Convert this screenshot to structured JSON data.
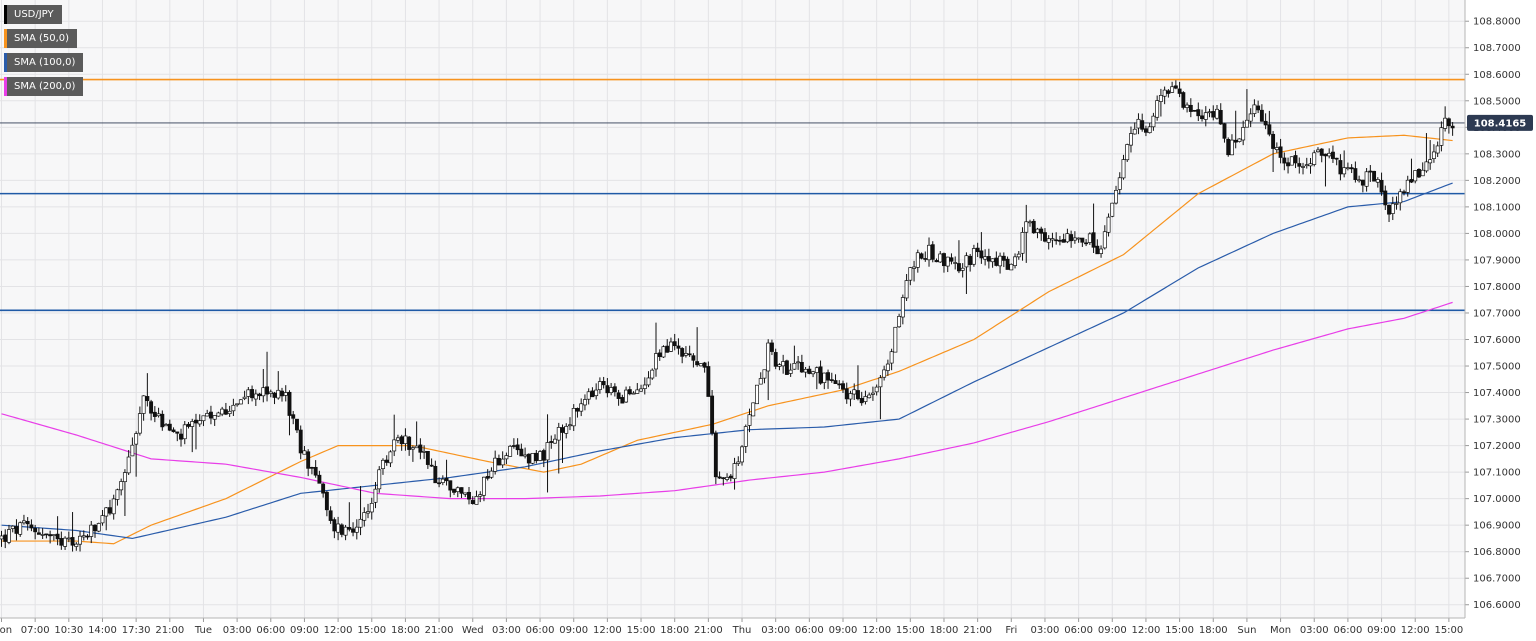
{
  "chart_data": {
    "type": "candlestick",
    "title": "",
    "ylabel": "",
    "xlabel": "",
    "ylim": [
      106.55,
      108.88
    ],
    "grid": true,
    "legend_position": "top-left",
    "legend": [
      {
        "label": "USD/JPY",
        "color": "#000000"
      },
      {
        "label": "SMA (50,0)",
        "color": "#f7931e"
      },
      {
        "label": "SMA (100,0)",
        "color": "#2a5caa"
      },
      {
        "label": "SMA (200,0)",
        "color": "#e83ee8"
      }
    ],
    "y_ticks": [
      "108.8000",
      "108.7000",
      "108.6000",
      "108.5000",
      "108.4000",
      "108.3000",
      "108.2000",
      "108.1000",
      "108.0000",
      "107.9000",
      "107.8000",
      "107.7000",
      "107.6000",
      "107.5000",
      "107.4000",
      "107.3000",
      "107.2000",
      "107.1000",
      "107.0000",
      "106.9000",
      "106.8000",
      "106.7000",
      "106.6000"
    ],
    "x_ticks": [
      {
        "i": 0,
        "label": "Mon"
      },
      {
        "i": 9,
        "label": "07:00"
      },
      {
        "i": 18,
        "label": "10:30"
      },
      {
        "i": 27,
        "label": "14:00"
      },
      {
        "i": 36,
        "label": "17:30"
      },
      {
        "i": 45,
        "label": "21:00"
      },
      {
        "i": 54,
        "label": "Tue"
      },
      {
        "i": 63,
        "label": "03:00"
      },
      {
        "i": 72,
        "label": "06:00"
      },
      {
        "i": 81,
        "label": "09:00"
      },
      {
        "i": 90,
        "label": "12:00"
      },
      {
        "i": 99,
        "label": "15:00"
      },
      {
        "i": 108,
        "label": "18:00"
      },
      {
        "i": 117,
        "label": "21:00"
      },
      {
        "i": 126,
        "label": "Wed"
      },
      {
        "i": 135,
        "label": "03:00"
      },
      {
        "i": 144,
        "label": "06:00"
      },
      {
        "i": 153,
        "label": "09:00"
      },
      {
        "i": 162,
        "label": "12:00"
      },
      {
        "i": 171,
        "label": "15:00"
      },
      {
        "i": 180,
        "label": "18:00"
      },
      {
        "i": 189,
        "label": "21:00"
      },
      {
        "i": 198,
        "label": "Thu"
      },
      {
        "i": 207,
        "label": "03:00"
      },
      {
        "i": 216,
        "label": "06:00"
      },
      {
        "i": 225,
        "label": "09:00"
      },
      {
        "i": 234,
        "label": "12:00"
      },
      {
        "i": 243,
        "label": "15:00"
      },
      {
        "i": 252,
        "label": "18:00"
      },
      {
        "i": 261,
        "label": "21:00"
      },
      {
        "i": 270,
        "label": "Fri"
      },
      {
        "i": 279,
        "label": "03:00"
      },
      {
        "i": 288,
        "label": "06:00"
      },
      {
        "i": 297,
        "label": "09:00"
      },
      {
        "i": 306,
        "label": "12:00"
      },
      {
        "i": 315,
        "label": "15:00"
      },
      {
        "i": 324,
        "label": "18:00"
      },
      {
        "i": 333,
        "label": "Sun"
      },
      {
        "i": 342,
        "label": "Mon"
      },
      {
        "i": 351,
        "label": "03:00"
      },
      {
        "i": 360,
        "label": "06:00"
      },
      {
        "i": 369,
        "label": "09:00"
      },
      {
        "i": 378,
        "label": "12:00"
      },
      {
        "i": 387,
        "label": "15:00"
      }
    ],
    "x_count": 391,
    "price_path": [
      [
        0,
        106.85
      ],
      [
        5,
        106.89
      ],
      [
        10,
        106.88
      ],
      [
        16,
        106.82
      ],
      [
        20,
        106.84
      ],
      [
        25,
        106.88
      ],
      [
        30,
        106.98
      ],
      [
        34,
        107.15
      ],
      [
        38,
        107.38
      ],
      [
        42,
        107.3
      ],
      [
        47,
        107.23
      ],
      [
        52,
        107.28
      ],
      [
        57,
        107.3
      ],
      [
        62,
        107.37
      ],
      [
        70,
        107.4
      ],
      [
        76,
        107.39
      ],
      [
        80,
        107.18
      ],
      [
        84,
        107.1
      ],
      [
        88,
        106.9
      ],
      [
        92,
        106.88
      ],
      [
        97,
        106.92
      ],
      [
        102,
        107.12
      ],
      [
        106,
        107.24
      ],
      [
        112,
        107.18
      ],
      [
        116,
        107.08
      ],
      [
        121,
        107.05
      ],
      [
        126,
        106.98
      ],
      [
        130,
        107.1
      ],
      [
        135,
        107.18
      ],
      [
        140,
        107.16
      ],
      [
        145,
        107.17
      ],
      [
        150,
        107.26
      ],
      [
        155,
        107.35
      ],
      [
        160,
        107.42
      ],
      [
        165,
        107.39
      ],
      [
        170,
        107.39
      ],
      [
        175,
        107.54
      ],
      [
        180,
        107.58
      ],
      [
        185,
        107.52
      ],
      [
        188,
        107.5
      ],
      [
        191,
        107.08
      ],
      [
        195,
        107.07
      ],
      [
        198,
        107.18
      ],
      [
        201,
        107.38
      ],
      [
        205,
        107.56
      ],
      [
        210,
        107.48
      ],
      [
        215,
        107.49
      ],
      [
        220,
        107.45
      ],
      [
        225,
        107.4
      ],
      [
        230,
        107.39
      ],
      [
        234,
        107.42
      ],
      [
        237,
        107.5
      ],
      [
        240,
        107.7
      ],
      [
        243,
        107.88
      ],
      [
        248,
        107.93
      ],
      [
        252,
        107.9
      ],
      [
        256,
        107.88
      ],
      [
        262,
        107.93
      ],
      [
        266,
        107.9
      ],
      [
        270,
        107.87
      ],
      [
        274,
        108.03
      ],
      [
        279,
        107.96
      ],
      [
        285,
        108.0
      ],
      [
        290,
        107.99
      ],
      [
        294,
        107.92
      ],
      [
        297,
        108.1
      ],
      [
        300,
        108.28
      ],
      [
        304,
        108.43
      ],
      [
        307,
        108.4
      ],
      [
        310,
        108.53
      ],
      [
        314,
        108.55
      ],
      [
        318,
        108.45
      ],
      [
        321,
        108.43
      ],
      [
        325,
        108.48
      ],
      [
        328,
        108.32
      ],
      [
        332,
        108.38
      ],
      [
        336,
        108.48
      ],
      [
        340,
        108.35
      ],
      [
        343,
        108.25
      ],
      [
        347,
        108.27
      ],
      [
        351,
        108.3
      ],
      [
        356,
        108.27
      ],
      [
        360,
        108.22
      ],
      [
        364,
        108.21
      ],
      [
        368,
        108.22
      ],
      [
        370,
        108.08
      ],
      [
        374,
        108.13
      ],
      [
        378,
        108.22
      ],
      [
        382,
        108.3
      ],
      [
        386,
        108.41
      ],
      [
        388,
        108.42
      ]
    ],
    "series": [
      {
        "name": "SMA (50,0)",
        "color": "#f7931e",
        "points": [
          [
            0,
            106.84
          ],
          [
            20,
            106.84
          ],
          [
            30,
            106.83
          ],
          [
            40,
            106.9
          ],
          [
            60,
            107.0
          ],
          [
            80,
            107.14
          ],
          [
            90,
            107.2
          ],
          [
            110,
            107.2
          ],
          [
            130,
            107.14
          ],
          [
            145,
            107.1
          ],
          [
            155,
            107.13
          ],
          [
            170,
            107.22
          ],
          [
            190,
            107.28
          ],
          [
            205,
            107.35
          ],
          [
            225,
            107.41
          ],
          [
            240,
            107.48
          ],
          [
            260,
            107.6
          ],
          [
            280,
            107.78
          ],
          [
            300,
            107.92
          ],
          [
            320,
            108.15
          ],
          [
            340,
            108.3
          ],
          [
            360,
            108.36
          ],
          [
            375,
            108.37
          ],
          [
            388,
            108.35
          ]
        ]
      },
      {
        "name": "SMA (100,0)",
        "color": "#2a5caa",
        "points": [
          [
            0,
            106.9
          ],
          [
            20,
            106.88
          ],
          [
            35,
            106.85
          ],
          [
            60,
            106.93
          ],
          [
            80,
            107.02
          ],
          [
            100,
            107.05
          ],
          [
            120,
            107.08
          ],
          [
            140,
            107.12
          ],
          [
            160,
            107.18
          ],
          [
            180,
            107.23
          ],
          [
            200,
            107.26
          ],
          [
            220,
            107.27
          ],
          [
            240,
            107.3
          ],
          [
            260,
            107.44
          ],
          [
            280,
            107.57
          ],
          [
            300,
            107.7
          ],
          [
            320,
            107.87
          ],
          [
            340,
            108.0
          ],
          [
            360,
            108.1
          ],
          [
            375,
            108.12
          ],
          [
            388,
            108.19
          ]
        ]
      },
      {
        "name": "SMA (200,0)",
        "color": "#e83ee8",
        "points": [
          [
            0,
            107.32
          ],
          [
            20,
            107.24
          ],
          [
            40,
            107.15
          ],
          [
            60,
            107.13
          ],
          [
            80,
            107.08
          ],
          [
            100,
            107.02
          ],
          [
            120,
            107.0
          ],
          [
            140,
            107.0
          ],
          [
            160,
            107.01
          ],
          [
            180,
            107.03
          ],
          [
            200,
            107.07
          ],
          [
            220,
            107.1
          ],
          [
            240,
            107.15
          ],
          [
            260,
            107.21
          ],
          [
            280,
            107.29
          ],
          [
            300,
            107.38
          ],
          [
            320,
            107.47
          ],
          [
            340,
            107.56
          ],
          [
            360,
            107.64
          ],
          [
            375,
            107.68
          ],
          [
            388,
            107.74
          ]
        ]
      }
    ],
    "horizontal_lines": [
      {
        "value": 108.58,
        "color": "#f7931e"
      },
      {
        "value": 108.15,
        "color": "#1f5aa6"
      },
      {
        "value": 107.71,
        "color": "#1f5aa6"
      }
    ],
    "current_price": {
      "value": 108.4165,
      "label": "108.4165",
      "color": "#2d3a52"
    }
  }
}
